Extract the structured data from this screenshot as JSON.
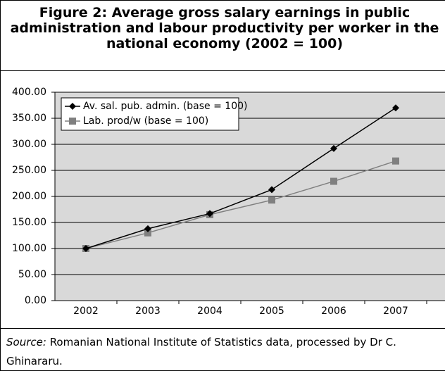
{
  "chart_data": {
    "type": "line",
    "title": "Figure 2: Average gross salary earnings in public administration and labour productivity per worker in the national economy (2002 = 100)",
    "categories": [
      "2002",
      "2003",
      "2004",
      "2005",
      "2006",
      "2007"
    ],
    "series": [
      {
        "name": "Av. sal. pub. admin. (base = 100)",
        "color": "#000000",
        "marker": "diamond",
        "values": [
          100,
          138,
          167,
          213,
          292,
          370
        ]
      },
      {
        "name": "Lab. prod/w (base = 100)",
        "color": "#808080",
        "marker": "square",
        "values": [
          100,
          130,
          165,
          193,
          229,
          268
        ]
      }
    ],
    "ylim": [
      0,
      400
    ],
    "yticks": [
      {
        "value": 0,
        "label": "0.00"
      },
      {
        "value": 50,
        "label": "50.00"
      },
      {
        "value": 100,
        "label": "100.00"
      },
      {
        "value": 150,
        "label": "150.00"
      },
      {
        "value": 200,
        "label": "200.00"
      },
      {
        "value": 250,
        "label": "250.00"
      },
      {
        "value": 300,
        "label": "300.00"
      },
      {
        "value": 350,
        "label": "350.00"
      },
      {
        "value": 400,
        "label": "400.00"
      }
    ],
    "grid": true,
    "legend": "upper left",
    "background": "#d9d9d9",
    "source_label": "Source:",
    "source_text": "Romanian National Institute of Statistics data, processed by Dr C. Ghinararu."
  }
}
